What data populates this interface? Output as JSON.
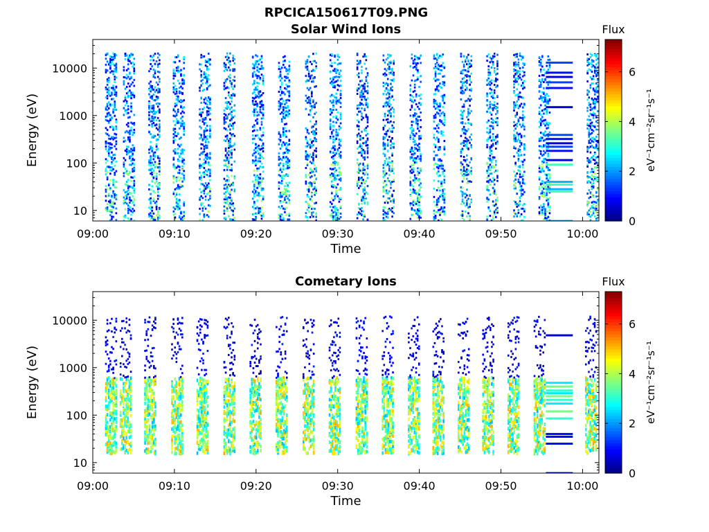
{
  "figure_title": "RPCICA150617T09.PNG",
  "colorbar": {
    "label": "eV⁻¹cm⁻²sr⁻¹s⁻¹",
    "title": "Flux",
    "ticks": [
      0,
      2,
      4,
      6
    ],
    "range": [
      0,
      7.3
    ],
    "colormap": "jet"
  },
  "chart_data": [
    {
      "type": "heatmap",
      "title": "Solar Wind Ions",
      "xlabel": "Time",
      "ylabel": "Energy (eV)",
      "xlim": [
        "09:00",
        "10:02"
      ],
      "ylim": [
        6,
        40000
      ],
      "yscale": "log",
      "x_ticks": [
        "09:00",
        "09:10",
        "09:20",
        "09:30",
        "09:40",
        "09:50",
        "10:00"
      ],
      "y_ticks": [
        10,
        100,
        1000,
        10000
      ],
      "pattern": {
        "burst_start_minutes": [
          1.5,
          3.7,
          6.8,
          9.8,
          13,
          16,
          19.5,
          22.7,
          26,
          29,
          32.3,
          35.5,
          38.8,
          41.7,
          45,
          48.2,
          51.5,
          54.6,
          60.5
        ],
        "energy_band_eV": [
          6,
          20000
        ],
        "flux_range": [
          0.5,
          3.5
        ],
        "steady_lines_window_minutes": [
          55.5,
          58.8
        ],
        "steady_lines_energy_eV": [
          6,
          25,
          28,
          35,
          40,
          92,
          115,
          180,
          220,
          260,
          320,
          390,
          1500,
          3800,
          5000,
          6500,
          8000,
          13000
        ]
      }
    },
    {
      "type": "heatmap",
      "title": "Cometary Ions",
      "xlabel": "Time",
      "ylabel": "Energy (eV)",
      "xlim": [
        "09:00",
        "10:02"
      ],
      "ylim": [
        6,
        40000
      ],
      "yscale": "log",
      "x_ticks": [
        "09:00",
        "09:10",
        "09:20",
        "09:30",
        "09:40",
        "09:50",
        "10:00"
      ],
      "y_ticks": [
        10,
        100,
        1000,
        10000
      ],
      "pattern": {
        "burst_start_minutes": [
          1.5,
          3.3,
          6.3,
          9.6,
          12.7,
          16,
          19.2,
          22.4,
          25.7,
          28.9,
          32.2,
          35.4,
          38.6,
          41.6,
          44.7,
          47.7,
          50.8,
          54,
          60.3
        ],
        "core_energy_eV": [
          15,
          600
        ],
        "core_flux_range": [
          2.2,
          5.2
        ],
        "sparse_energy_eV": [
          600,
          12000
        ],
        "sparse_flux_range": [
          0.4,
          1.2
        ],
        "steady_lines_window_minutes": [
          55.5,
          58.8
        ],
        "steady_lines_energy_eV": [
          6,
          25,
          35,
          40,
          85,
          120,
          175,
          210,
          250,
          290,
          330,
          400,
          480,
          4800
        ]
      }
    }
  ]
}
